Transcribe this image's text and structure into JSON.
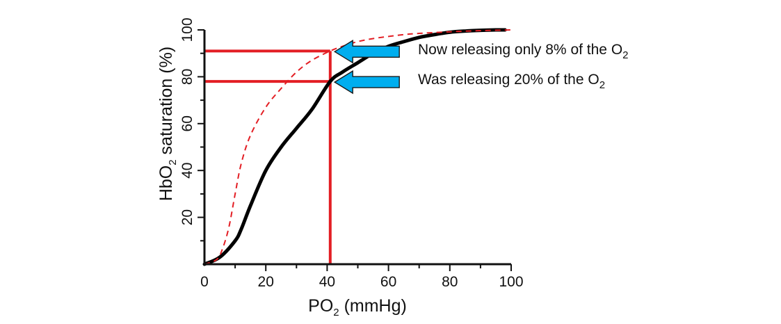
{
  "chart_data": {
    "type": "line",
    "xlabel": {
      "main": "PO",
      "subscript": "2",
      "suffix": " (mmHg)"
    },
    "ylabel": {
      "main": "HbO",
      "subscript": "2",
      "suffix": " saturation (%)"
    },
    "xlim": [
      0,
      100
    ],
    "ylim": [
      0,
      100
    ],
    "x_ticks": [
      "0",
      "20",
      "40",
      "60",
      "80",
      "100"
    ],
    "y_ticks": [
      "20",
      "40",
      "60",
      "80",
      "100"
    ],
    "x_tick_values": [
      0,
      20,
      40,
      60,
      80,
      100
    ],
    "y_tick_values": [
      20,
      40,
      60,
      80,
      100
    ],
    "series": [
      {
        "style": "solid",
        "color": "#000000",
        "x": [
          0,
          5,
          10,
          12,
          15,
          20,
          25,
          30,
          35,
          41,
          45,
          50,
          55,
          60,
          65,
          70,
          75,
          80,
          85,
          90,
          95,
          98
        ],
        "y": [
          0,
          3,
          10,
          15,
          25,
          40,
          50,
          58,
          66,
          78,
          82,
          86,
          90,
          93,
          95,
          96.8,
          98,
          99,
          99.5,
          99.8,
          100,
          100
        ]
      },
      {
        "style": "dashed",
        "color": "#e31e24",
        "x": [
          0,
          4,
          6,
          8,
          10,
          12,
          15,
          20,
          25,
          30,
          35,
          41,
          45,
          50,
          55,
          60,
          65,
          70,
          80,
          90,
          100
        ],
        "y": [
          0,
          2,
          7,
          16,
          30,
          43,
          55,
          67,
          75,
          82,
          87,
          91,
          93,
          95,
          96.3,
          97.2,
          98,
          98.5,
          99.2,
          99.7,
          100
        ]
      }
    ],
    "reference_lines": {
      "color": "#e31e24",
      "vertical_x": 41,
      "horizontal_y": [
        78,
        91
      ]
    },
    "annotations": [
      {
        "text": "Now releasing only 8% of the O",
        "subscript": "2",
        "arrow_to": {
          "x": 42,
          "y": 91
        },
        "arrow_color": "#00aeef"
      },
      {
        "text": "Was releasing 20% of the O",
        "subscript": "2",
        "arrow_to": {
          "x": 42,
          "y": 78
        },
        "arrow_color": "#00aeef"
      }
    ]
  }
}
